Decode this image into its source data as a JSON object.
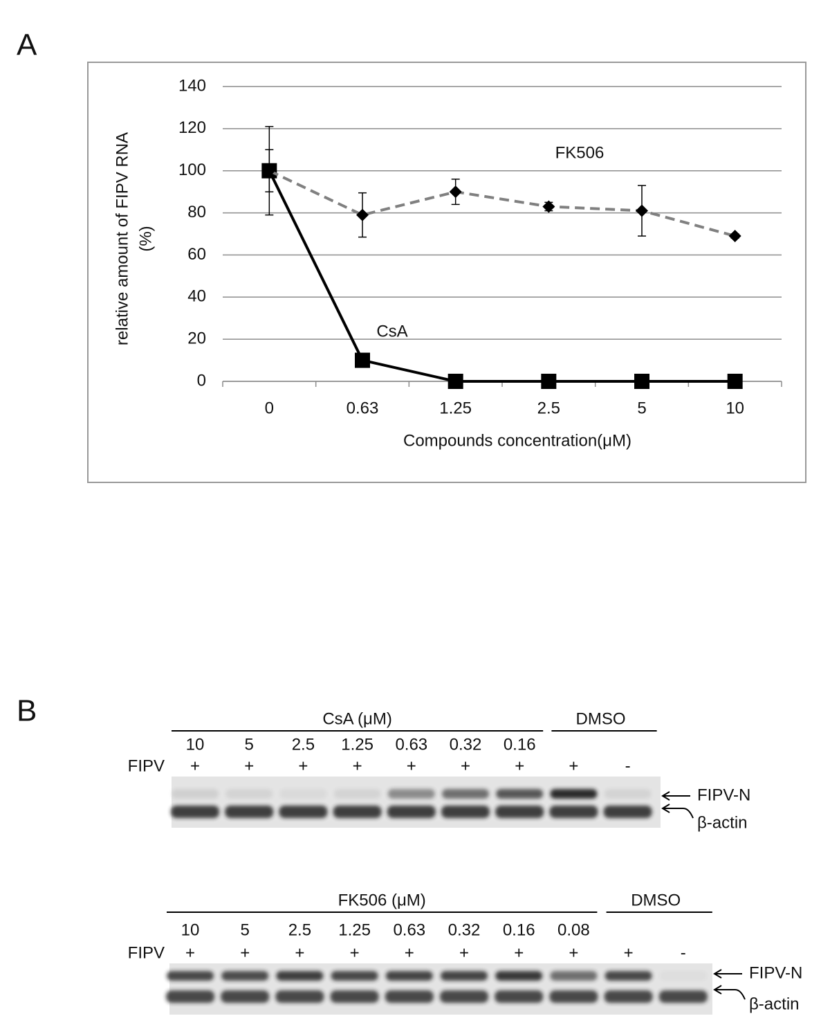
{
  "chart_data": {
    "type": "line",
    "panel_label": "A",
    "categories": [
      "0",
      "0.63",
      "1.25",
      "2.5",
      "5",
      "10"
    ],
    "series": [
      {
        "name": "CsA",
        "color": "#000000",
        "line_style": "solid",
        "marker": "square",
        "values": [
          100,
          10,
          0,
          0,
          0,
          0
        ],
        "errors": [
          21,
          0,
          0,
          0,
          0,
          0
        ]
      },
      {
        "name": "FK506",
        "color": "#808080",
        "line_style": "dashed",
        "marker": "diamond",
        "values": [
          100,
          79,
          90,
          83,
          81,
          69
        ],
        "errors": [
          10,
          10.5,
          6,
          2,
          12,
          1
        ]
      }
    ],
    "x_label": "Compounds concentration(μM)",
    "y_label": [
      "relative amount of FIPV RNA",
      "(%)"
    ],
    "ylim": [
      0,
      140
    ],
    "yticks": [
      0,
      20,
      40,
      60,
      80,
      100,
      120,
      140
    ],
    "grid": true
  },
  "panel_b_label": "B",
  "blots": [
    {
      "group_label": "CsA (μM)",
      "control_label": "DMSO",
      "row_label": "FIPV",
      "concentrations": [
        "10",
        "5",
        "2.5",
        "1.25",
        "0.63",
        "0.32",
        "0.16"
      ],
      "signs": [
        "+",
        "+",
        "+",
        "+",
        "+",
        "+",
        "+",
        "+",
        "-"
      ],
      "band_labels": [
        "FIPV-N",
        "β-actin"
      ]
    },
    {
      "group_label": "FK506 (μM)",
      "control_label": "DMSO",
      "row_label": "FIPV",
      "concentrations": [
        "10",
        "5",
        "2.5",
        "1.25",
        "0.63",
        "0.32",
        "0.16",
        "0.08"
      ],
      "signs": [
        "+",
        "+",
        "+",
        "+",
        "+",
        "+",
        "+",
        "+",
        "+",
        "-"
      ],
      "band_labels": [
        "FIPV-N",
        "β-actin"
      ]
    }
  ]
}
